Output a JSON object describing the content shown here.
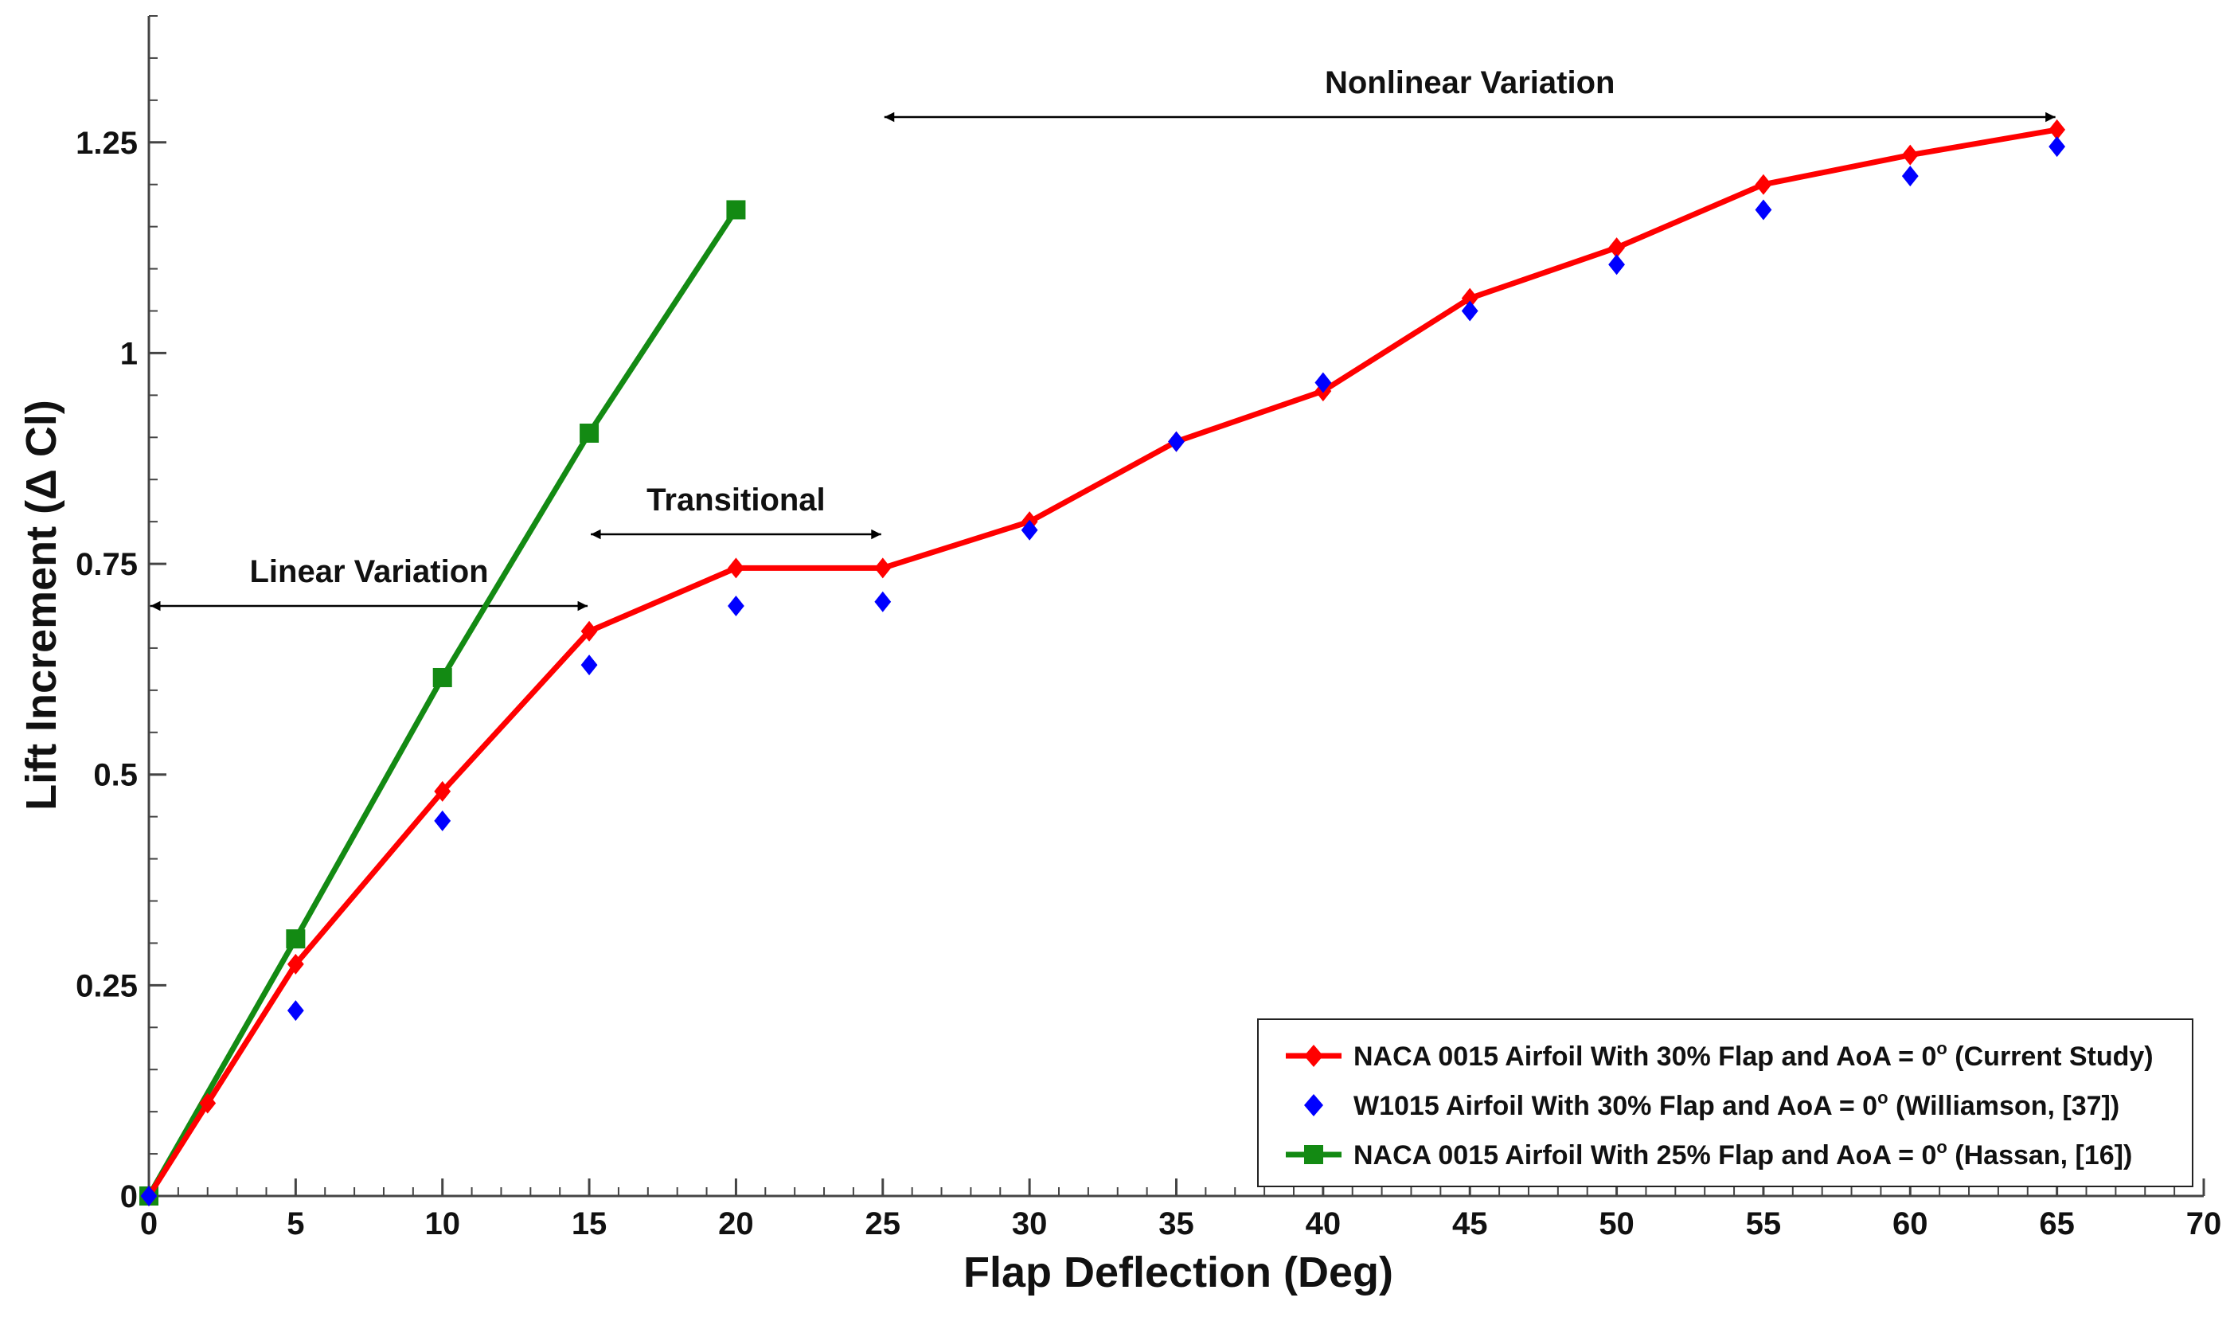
{
  "chart_data": {
    "type": "line",
    "title": "",
    "xlabel": "Flap Deflection (Deg)",
    "ylabel": "Lift Increment (Δ Cl)",
    "xlim": [
      0,
      70
    ],
    "ylim": [
      0,
      1.4
    ],
    "x_ticks": [
      0,
      5,
      10,
      15,
      20,
      25,
      30,
      35,
      40,
      45,
      50,
      55,
      60,
      65,
      70
    ],
    "x_tick_labels": [
      "0",
      "5",
      "10",
      "15",
      "20",
      "25",
      "30",
      "35",
      "40",
      "45",
      "50",
      "55",
      "60",
      "65",
      "70"
    ],
    "y_ticks": [
      0,
      0.25,
      0.5,
      0.75,
      1,
      1.25
    ],
    "y_tick_labels": [
      "0",
      "0.25",
      "0.5",
      "0.75",
      "1",
      "1.25"
    ],
    "grid": false,
    "legend_position": "bottom-right",
    "series": [
      {
        "name": "NACA 0015 Airfoil With 30% Flap and AoA = 0",
        "name_suffix": " (Current Study)",
        "superscript": "o",
        "color": "#ff0000",
        "marker": "diamond",
        "line": true,
        "x": [
          0,
          2,
          5,
          10,
          15,
          20,
          25,
          30,
          35,
          40,
          45,
          50,
          55,
          60,
          65
        ],
        "y": [
          0,
          0.11,
          0.275,
          0.48,
          0.67,
          0.745,
          0.745,
          0.8,
          0.895,
          0.955,
          1.065,
          1.125,
          1.2,
          1.235,
          1.265
        ]
      },
      {
        "name": "W1015 Airfoil With 30% Flap and AoA = 0",
        "name_suffix": " (Williamson, [37])",
        "superscript": "o",
        "color": "#0000ff",
        "marker": "diamond",
        "line": false,
        "x": [
          0,
          5,
          10,
          15,
          20,
          25,
          30,
          35,
          40,
          45,
          50,
          55,
          60,
          65
        ],
        "y": [
          0,
          0.22,
          0.445,
          0.63,
          0.7,
          0.705,
          0.79,
          0.895,
          0.965,
          1.05,
          1.105,
          1.17,
          1.21,
          1.245
        ]
      },
      {
        "name": "NACA 0015 Airfoil With 25% Flap and AoA = 0",
        "name_suffix": " (Hassan, [16])",
        "superscript": "o",
        "color": "#138a13",
        "marker": "square",
        "line": true,
        "x": [
          0,
          5,
          10,
          15,
          20
        ],
        "y": [
          0,
          0.305,
          0.615,
          0.905,
          1.17
        ]
      }
    ],
    "annotations": [
      {
        "text": "Linear Variation",
        "x_from": 0,
        "x_to": 15,
        "y": 0.7
      },
      {
        "text": "Transitional",
        "x_from": 15,
        "x_to": 25,
        "y": 0.785
      },
      {
        "text": "Nonlinear Variation",
        "x_from": 25,
        "x_to": 65,
        "y": 1.28
      }
    ]
  }
}
